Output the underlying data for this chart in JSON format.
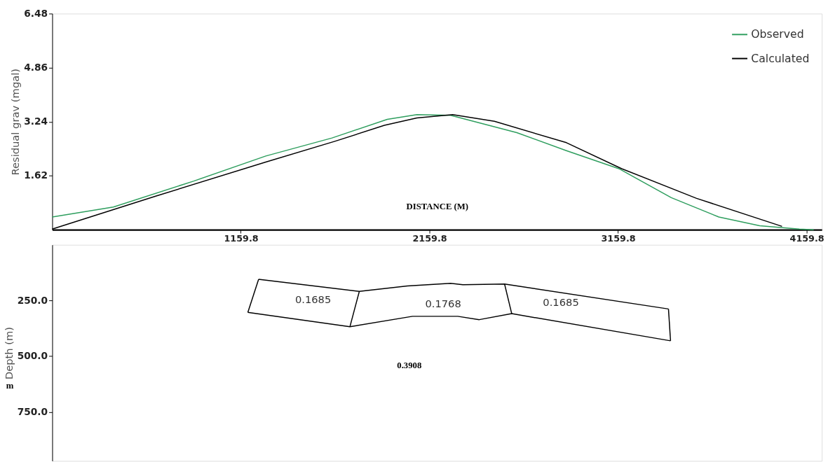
{
  "chart_data": [
    {
      "type": "line",
      "xlabel": "DISTANCE (M)",
      "ylabel": "Residual grav (mgal)",
      "xlim": [
        159.8,
        4240
      ],
      "ylim": [
        0,
        6.48
      ],
      "xticks": [
        1159.8,
        2159.8,
        3159.8,
        4159.8
      ],
      "yticks": [
        1.62,
        3.24,
        4.86,
        6.48
      ],
      "legend": "top right",
      "grid": false,
      "marker": "none",
      "line_style": "solid",
      "series": [
        {
          "name": "Observed",
          "color": "#2e9e5e",
          "x": [
            159.8,
            484,
            911,
            1292,
            1643,
            1936,
            2093,
            2272,
            2623,
            2886,
            3164,
            3442,
            3694,
            3911,
            4121,
            4197
          ],
          "values": [
            0.38,
            0.68,
            1.46,
            2.21,
            2.75,
            3.31,
            3.45,
            3.43,
            2.91,
            2.37,
            1.83,
            0.96,
            0.38,
            0.12,
            0.02,
            0.0
          ]
        },
        {
          "name": "Calculated",
          "color": "#000000",
          "x": [
            159.8,
            705,
            1292,
            1658,
            1921,
            2093,
            2283,
            2504,
            2886,
            3179,
            3576,
            4029
          ],
          "values": [
            0.02,
            1.0,
            2.03,
            2.65,
            3.13,
            3.35,
            3.45,
            3.25,
            2.61,
            1.83,
            0.94,
            0.1
          ]
        }
      ]
    },
    {
      "type": "line",
      "ylabel": "Depth (m)",
      "xlim": [
        159.8,
        4240
      ],
      "ylim": [
        970,
        0
      ],
      "yticks": [
        {
          "value": 250,
          "label": "250.0"
        },
        {
          "value": 500,
          "label": "500.0"
        },
        {
          "value": 750,
          "label": "750.0"
        }
      ],
      "tick_labels": "y",
      "grid": false,
      "marker": "none",
      "line_style": "solid",
      "annotations": [
        "0.1685",
        "0.1768",
        "0.1685",
        "0.3908",
        "m"
      ],
      "series": [
        {
          "color": "#000000",
          "x": [
            1254,
            1788,
            2043,
            2272,
            2337,
            2558,
            3427
          ],
          "values": [
            155,
            209,
            185,
            173,
            179,
            176,
            288
          ]
        },
        {
          "color": "#000000",
          "x": [
            1197,
            1738,
            2070,
            2310,
            2424,
            2596,
            3438
          ],
          "values": [
            303,
            368,
            321,
            321,
            336,
            309,
            431
          ]
        },
        {
          "color": "#000000",
          "x": [
            1197,
            1254
          ],
          "values": [
            303,
            155
          ]
        },
        {
          "color": "#000000",
          "x": [
            1738,
            1788
          ],
          "values": [
            368,
            209
          ]
        },
        {
          "color": "#000000",
          "x": [
            2558,
            2596
          ],
          "values": [
            176,
            309
          ]
        },
        {
          "color": "#000000",
          "x": [
            3427,
            3438
          ],
          "values": [
            288,
            431
          ]
        }
      ]
    }
  ]
}
